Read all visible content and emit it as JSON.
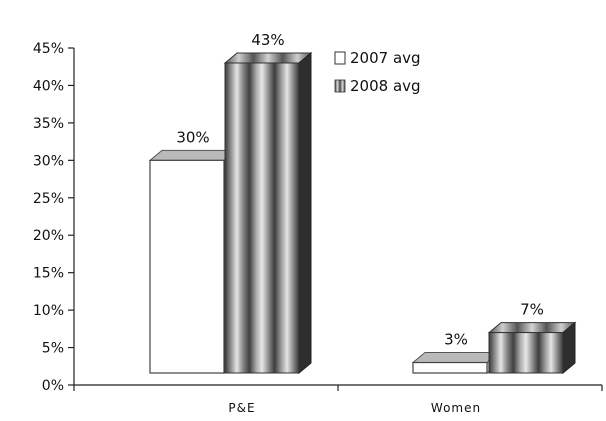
{
  "chart_data": {
    "type": "bar",
    "title": "",
    "xlabel": "",
    "ylabel": "",
    "categories": [
      "P&E",
      "Women"
    ],
    "series": [
      {
        "name": "2007 avg",
        "values": [
          30,
          3
        ],
        "labels": [
          "30%",
          "3%"
        ],
        "style": "white-3d"
      },
      {
        "name": "2008 avg",
        "values": [
          43,
          7
        ],
        "labels": [
          "43%",
          "7%"
        ],
        "style": "striped-3d"
      }
    ],
    "ylim": [
      0,
      45
    ],
    "yticks": [
      0,
      5,
      10,
      15,
      20,
      25,
      30,
      35,
      40,
      45
    ],
    "ytick_labels": [
      "0%",
      "5%",
      "10%",
      "15%",
      "20%",
      "25%",
      "30%",
      "35%",
      "40%",
      "45%"
    ],
    "grid": false,
    "legend_position": "top-right",
    "colors": {
      "white_face": "#ffffff",
      "white_top": "#b9b9b9",
      "stripe_dark": "#3b3b3b",
      "stripe_light": "#dcdcdc",
      "side_dark": "#2e2e2e",
      "axis": "#222222"
    }
  }
}
